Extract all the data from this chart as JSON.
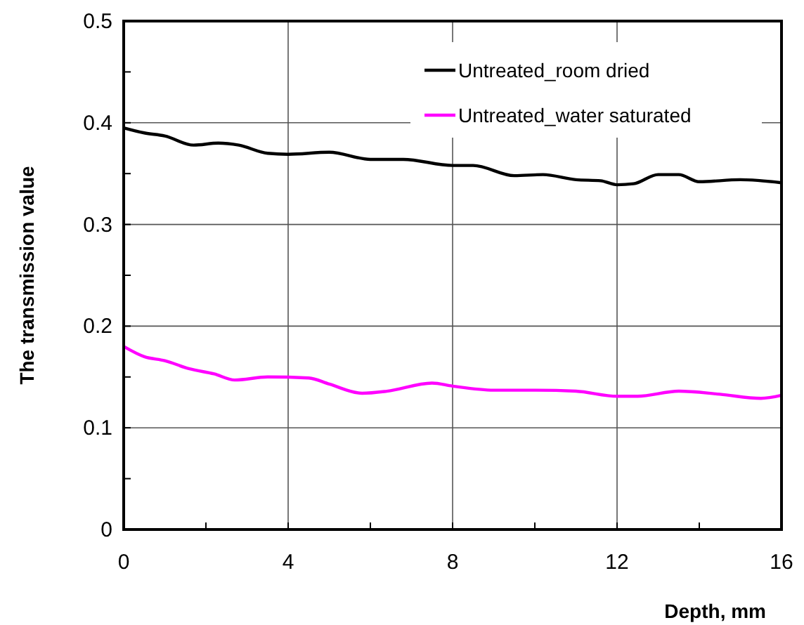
{
  "chart_data": {
    "type": "line",
    "xlabel": "Depth, mm",
    "ylabel": "The transmission value",
    "xlim": [
      0,
      16
    ],
    "xticks": [
      0,
      {
        "value": 2,
        "label": null
      },
      4,
      {
        "value": 6,
        "label": null
      },
      8,
      {
        "value": 10,
        "label": null
      },
      12,
      {
        "value": 14,
        "label": null
      },
      16
    ],
    "ylim": [
      0,
      0.5
    ],
    "yticks": [
      0,
      {
        "value": 0.05,
        "label": null
      },
      0.1,
      {
        "value": 0.15,
        "label": null
      },
      0.2,
      {
        "value": 0.25,
        "label": null
      },
      0.3,
      {
        "value": 0.35,
        "label": null
      },
      0.4,
      {
        "value": 0.45,
        "label": null
      },
      0.5
    ],
    "grid": true,
    "legend": "top right",
    "marker": "none",
    "line_style": "solid",
    "series": [
      {
        "name": "Untreated_room dried",
        "color": "#000000",
        "x": [
          0,
          0.5,
          1,
          1.7,
          2.3,
          2.8,
          3.5,
          4,
          5,
          6,
          6.8,
          8,
          8.5,
          9.5,
          10.2,
          11,
          11.6,
          12,
          12.4,
          13,
          13.5,
          14,
          15,
          16
        ],
        "values": [
          0.395,
          0.39,
          0.387,
          0.378,
          0.38,
          0.378,
          0.37,
          0.369,
          0.371,
          0.364,
          0.364,
          0.358,
          0.358,
          0.348,
          0.349,
          0.344,
          0.343,
          0.339,
          0.34,
          0.349,
          0.349,
          0.342,
          0.344,
          0.341
        ]
      },
      {
        "name": "Untreated_water saturated",
        "color": "#ff00ff",
        "x": [
          0,
          0.5,
          1,
          1.6,
          2.2,
          2.7,
          3.5,
          4.5,
          5,
          5.8,
          6.4,
          7.5,
          8,
          9,
          10,
          11,
          12,
          12.5,
          13.5,
          14.5,
          15.5,
          16
        ],
        "values": [
          0.18,
          0.17,
          0.166,
          0.158,
          0.153,
          0.147,
          0.15,
          0.149,
          0.143,
          0.134,
          0.136,
          0.144,
          0.141,
          0.137,
          0.137,
          0.136,
          0.131,
          0.131,
          0.136,
          0.133,
          0.129,
          0.132
        ]
      }
    ]
  }
}
